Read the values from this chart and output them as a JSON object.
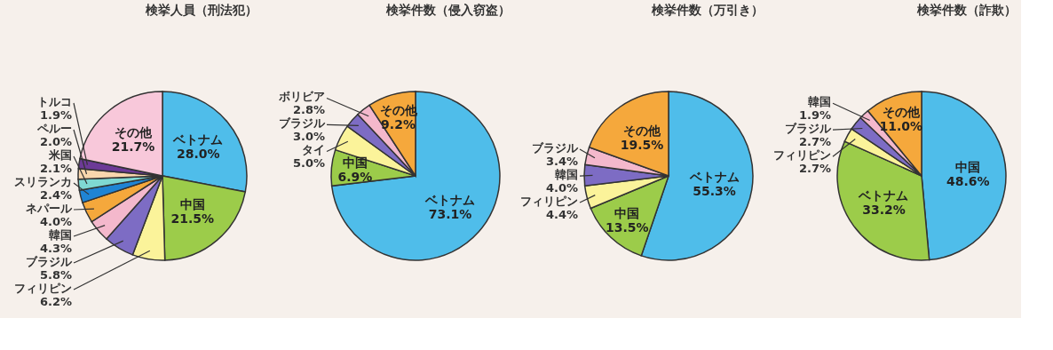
{
  "chart_data": [
    {
      "type": "pie",
      "title": "検挙人員（刑法犯）",
      "categories": [
        "ベトナム",
        "中国",
        "フィリピン",
        "ブラジル",
        "韓国",
        "ネパール",
        "スリランカ",
        "米国",
        "ペルー",
        "トルコ",
        "その他"
      ],
      "values": [
        28.0,
        21.5,
        6.2,
        5.8,
        4.3,
        4.0,
        2.4,
        2.1,
        2.0,
        1.9,
        21.7
      ],
      "value_labels": [
        "28.0%",
        "21.5%",
        "6.2%",
        "5.8%",
        "4.3%",
        "4.0%",
        "2.4%",
        "2.1%",
        "2.0%",
        "1.9%",
        "21.7%"
      ],
      "colors": [
        "#4fbdea",
        "#9ccc4a",
        "#fbf39a",
        "#7d6cc4",
        "#f4b8cc",
        "#f5a83c",
        "#1f84d4",
        "#7fd8d2",
        "#f9d6ad",
        "#6c3a97",
        "#f8c8da"
      ]
    },
    {
      "type": "pie",
      "title": "検挙件数（侵入窃盗）",
      "categories": [
        "ベトナム",
        "中国",
        "タイ",
        "ブラジル",
        "ボリビア",
        "その他"
      ],
      "values": [
        73.1,
        6.9,
        5.0,
        3.0,
        2.8,
        9.2
      ],
      "value_labels": [
        "73.1%",
        "6.9%",
        "5.0%",
        "3.0%",
        "2.8%",
        "9.2%"
      ],
      "colors": [
        "#4fbdea",
        "#9ccc4a",
        "#fbf39a",
        "#7d6cc4",
        "#f4b8cc",
        "#f5a83c"
      ]
    },
    {
      "type": "pie",
      "title": "検挙件数（万引き）",
      "categories": [
        "ベトナム",
        "中国",
        "フィリピン",
        "韓国",
        "ブラジル",
        "その他"
      ],
      "values": [
        55.3,
        13.5,
        4.4,
        4.0,
        3.4,
        19.5
      ],
      "value_labels": [
        "55.3%",
        "13.5%",
        "4.4%",
        "4.0%",
        "3.4%",
        "19.5%"
      ],
      "colors": [
        "#4fbdea",
        "#9ccc4a",
        "#fbf39a",
        "#7d6cc4",
        "#f4b8cc",
        "#f5a83c"
      ]
    },
    {
      "type": "pie",
      "title": "検挙件数（詐欺）",
      "categories": [
        "中国",
        "ベトナム",
        "フィリピン",
        "ブラジル",
        "韓国",
        "その他"
      ],
      "values": [
        48.6,
        33.2,
        2.7,
        2.7,
        1.9,
        11.0
      ],
      "value_labels": [
        "48.6%",
        "33.2%",
        "2.7%",
        "2.7%",
        "1.9%",
        "11.0%"
      ],
      "colors": [
        "#4fbdea",
        "#9ccc4a",
        "#fbf39a",
        "#7d6cc4",
        "#f4b8cc",
        "#f5a83c"
      ]
    }
  ]
}
